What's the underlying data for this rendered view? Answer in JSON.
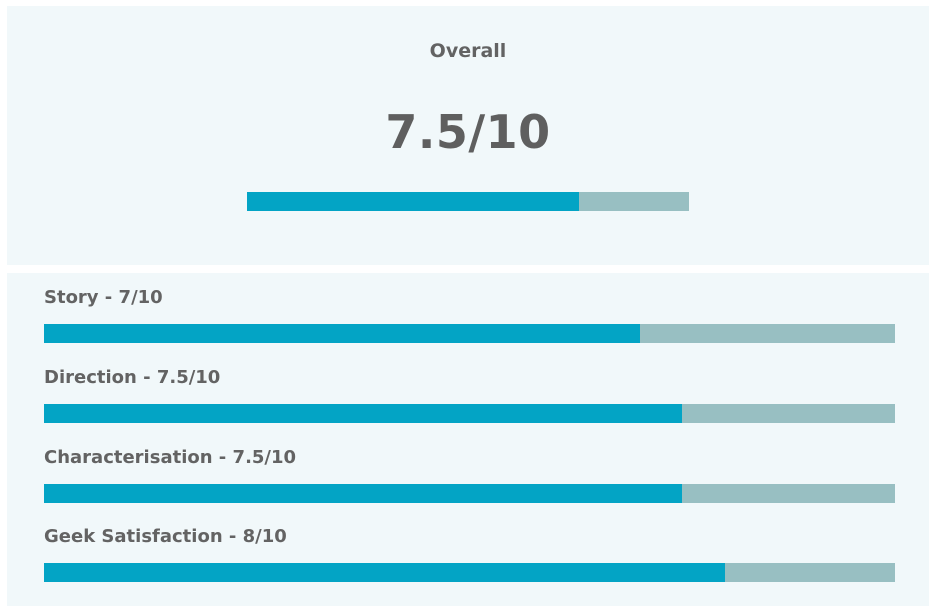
{
  "overall": {
    "title": "Overall",
    "score_text": "7.5/10",
    "fraction": 0.75
  },
  "criteria": [
    {
      "label": "Story - 7/10",
      "fraction": 0.7
    },
    {
      "label": "Direction - 7.5/10",
      "fraction": 0.75
    },
    {
      "label": "Characterisation - 7.5/10",
      "fraction": 0.75
    },
    {
      "label": "Geek Satisfaction - 8/10",
      "fraction": 0.8
    }
  ],
  "colors": {
    "bar_fill": "#03a4c5",
    "bar_track": "#98bfc2",
    "panel_background": "#f1f8fa",
    "text": "#636363"
  }
}
